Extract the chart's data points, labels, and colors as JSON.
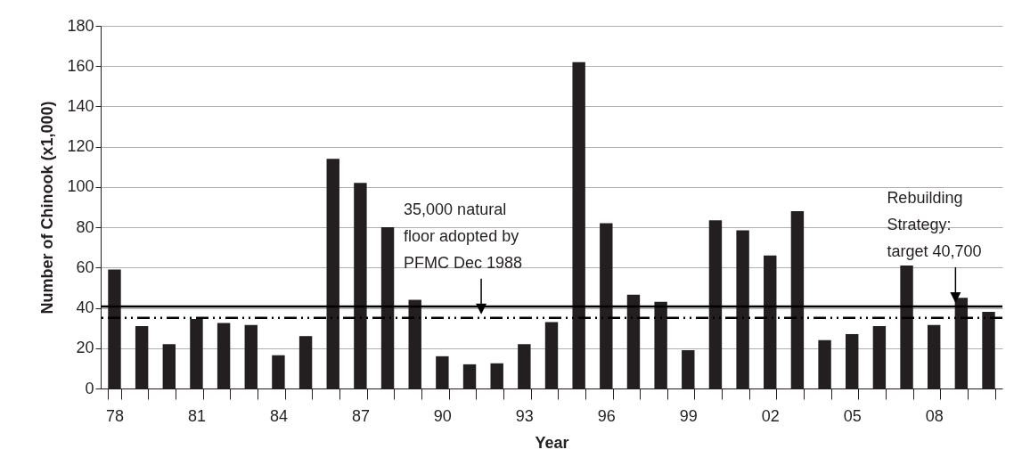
{
  "chart_data": {
    "type": "bar",
    "xlabel": "Year",
    "ylabel": "Number of Chinook (x1,000)",
    "categories": [
      "78",
      null,
      null,
      "81",
      null,
      null,
      "84",
      null,
      null,
      "87",
      null,
      null,
      "90",
      null,
      null,
      "93",
      null,
      null,
      "96",
      null,
      null,
      "99",
      null,
      null,
      "02",
      null,
      null,
      "05",
      null,
      null,
      "08",
      null,
      null
    ],
    "values": [
      59,
      31,
      22,
      34.5,
      32.5,
      31.5,
      16.5,
      26,
      114,
      102,
      80,
      44,
      16,
      12,
      12.5,
      22,
      33,
      162,
      82,
      46.5,
      43,
      19,
      83.5,
      78.5,
      66,
      88,
      24,
      27,
      31,
      61,
      31.5,
      45,
      38
    ],
    "color": "#231f20",
    "ylim": [
      0,
      180
    ],
    "yticks": [
      0,
      20,
      40,
      60,
      80,
      100,
      120,
      140,
      160,
      180
    ],
    "grid": "y",
    "ref_lines": [
      {
        "axis": "y",
        "value": 35,
        "label": "35,000 natural\nfloor adopted by\nPFMC Dec 1988",
        "color": "#000000",
        "line_style": "dashed"
      },
      {
        "axis": "y",
        "value": 40.7,
        "label": "Rebuilding\nStrategy:\ntarget 40,700",
        "color": "#000000",
        "line_style": "solid"
      }
    ]
  }
}
